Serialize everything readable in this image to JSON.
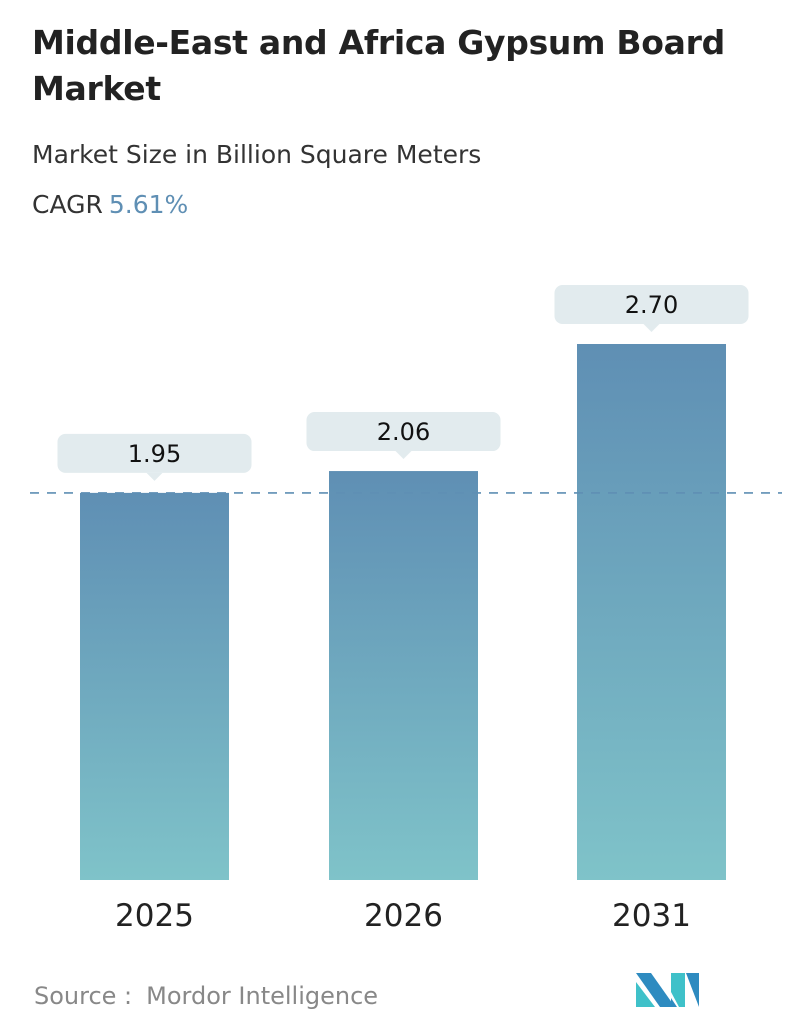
{
  "header": {
    "title": "Middle-East and Africa Gypsum Board Market",
    "subtitle": "Market Size in Billion Square Meters",
    "cagr_label": "CAGR",
    "cagr_value": "5.61%"
  },
  "chart_data": {
    "type": "bar",
    "categories": [
      "2025",
      "2026",
      "2031"
    ],
    "values": [
      1.95,
      2.06,
      2.7
    ],
    "data_labels": [
      "1.95",
      "2.06",
      "2.70"
    ],
    "ylabel": "Market Size in Billion Square Meters",
    "ylim": [
      0,
      2.7
    ],
    "grid": false,
    "reference_line": 1.95,
    "colors": {
      "bar_top": "#5f8fb4",
      "bar_bottom": "#7fc3c9",
      "label_bg": "#e2ebee",
      "reference_line": "#5f8fb4"
    }
  },
  "footer": {
    "source_label": "Source :",
    "source": "Mordor Intelligence"
  },
  "logo": {
    "name": "mordor-intelligence-logo",
    "colors": [
      "#2e8bc0",
      "#3fc1c9"
    ]
  }
}
